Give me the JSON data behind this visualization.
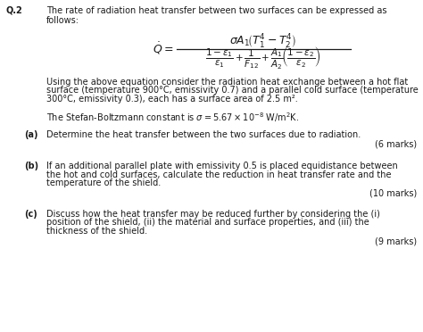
{
  "bg_color": "#ffffff",
  "text_color": "#1a1a1a",
  "q_label": "Q.2",
  "intro_line1": "The rate of radiation heat transfer between two surfaces can be expressed as",
  "intro_line2": "follows:",
  "para1_line1": "Using the above equation consider the radiation heat exchange between a hot flat",
  "para1_line2": "surface (temperature 900°C, emissivity 0.7) and a parallel cold surface (temperature",
  "para1_line3": "300°C, emissivity 0.3), each has a surface area of 2.5 m².",
  "stefan": "The Stefan-Boltzmann constant is $\\sigma = 5.67\\times10^{-8}$ W/m$^2$K.",
  "a_label": "(a)",
  "a_text": "Determine the heat transfer between the two surfaces due to radiation.",
  "a_marks": "(6 marks)",
  "b_label": "(b)",
  "b_line1": "If an additional parallel plate with emissivity 0.5 is placed equidistance between",
  "b_line2": "the hot and cold surfaces, calculate the reduction in heat transfer rate and the",
  "b_line3": "temperature of the shield.",
  "b_marks": "(10 marks)",
  "c_label": "(c)",
  "c_line1": "Discuss how the heat transfer may be reduced further by considering the (i)",
  "c_line2": "position of the shield, (ii) the material and surface properties, and (iii) the",
  "c_line3": "thickness of the shield.",
  "c_marks": "(9 marks)",
  "font_size": 7.0,
  "eq_font_size": 9.0,
  "eq_sub_font_size": 7.5
}
